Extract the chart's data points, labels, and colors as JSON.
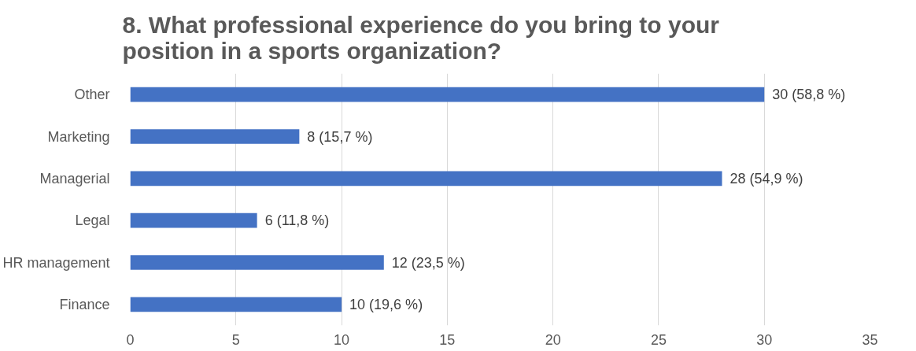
{
  "chart_data": {
    "type": "bar",
    "orientation": "horizontal",
    "title": "8. What professional experience do you bring to your position in a sports organization?",
    "categories": [
      "Other",
      "Marketing",
      "Managerial",
      "Legal",
      "HR management",
      "Finance"
    ],
    "values": [
      30,
      8,
      28,
      6,
      12,
      10
    ],
    "value_labels": [
      "30 (58,8 %)",
      "8 (15,7 %)",
      "28 (54,9 %)",
      "6 (11,8 %)",
      "12 (23,5 %)",
      "10 (19,6 %)"
    ],
    "color": "#4472c4",
    "xlim": [
      0,
      35
    ],
    "xticks": [
      0,
      5,
      10,
      15,
      20,
      25,
      30,
      35
    ],
    "grid": "x"
  }
}
